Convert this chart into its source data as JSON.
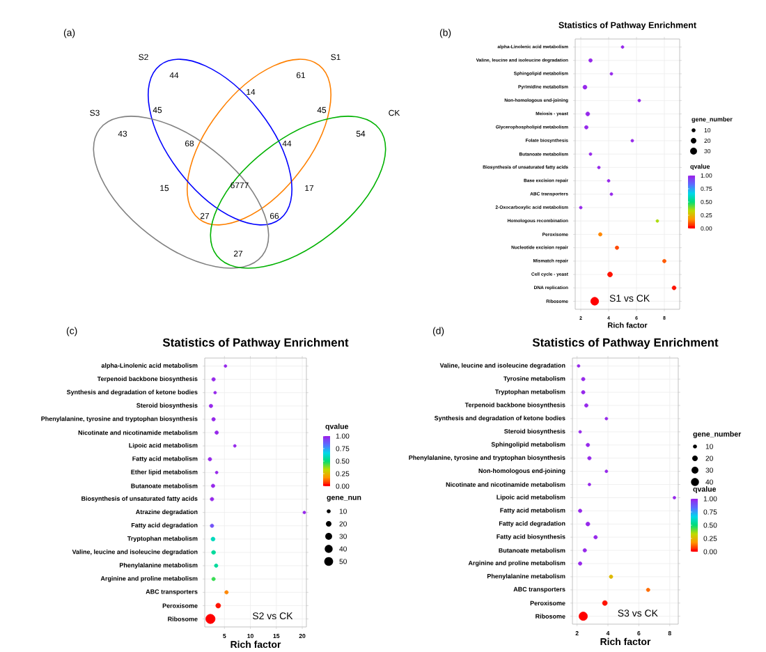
{
  "chart_data": [
    {
      "type": "other",
      "title": "(a)",
      "annotations": [
        "S1",
        "S2",
        "S3",
        "CK",
        "44",
        "61",
        "43",
        "54",
        "14",
        "45",
        "45",
        "68",
        "44",
        "15",
        "6777",
        "17",
        "27",
        "66",
        "27"
      ]
    },
    {
      "type": "bubble",
      "orientation": "horizontal",
      "title": "Statistics of Pathway Enrichment",
      "xlabel": "Rich factor",
      "categories": [
        "alpha-Linolenic acid metabolism",
        "Valine, leucine and isoleucine degradation",
        "Sphingolipid metabolism",
        "Pyrimidine metabolism",
        "Non-homologous end-joining",
        "Meiosis - yeast",
        "Glycerophospholipid metabolism",
        "Folate biosynthesis",
        "Butanoate metabolism",
        "Biosynthesis of unsaturated fatty acids",
        "Base excision repair",
        "ABC transporters",
        "2-Oxocarboxylic acid metabolism",
        "Homologous recombination",
        "Peroxisome",
        "Nucleotide excision repair",
        "Mismatch repair",
        "Cell cycle - yeast",
        "DNA replication",
        "Ribosome"
      ],
      "values": [
        5.0,
        2.7,
        4.2,
        2.3,
        6.2,
        2.5,
        2.4,
        5.7,
        2.7,
        3.3,
        4.0,
        4.2,
        2.0,
        7.5,
        3.4,
        4.6,
        8.0,
        4.1,
        8.7,
        3.0
      ],
      "sizes": [
        5,
        8,
        5,
        10,
        5,
        10,
        8,
        5,
        5,
        5,
        5,
        5,
        5,
        5,
        8,
        8,
        8,
        15,
        10,
        40
      ],
      "cvalues": [
        1,
        1,
        1,
        1,
        1,
        1,
        1,
        1,
        1,
        1,
        1,
        1,
        1,
        0.35,
        0.15,
        0.08,
        0.1,
        0.02,
        0.02,
        0
      ],
      "xlim": [
        1.6,
        9.1
      ],
      "xticks": [
        2,
        4,
        6,
        8
      ],
      "grid": true,
      "legend_title": "gene_number",
      "size_legend": [
        10,
        20,
        30
      ],
      "clabel": "qvalue",
      "clim": [
        0,
        1
      ],
      "cticks": [
        {
          "value": 0,
          "label": "0.00"
        },
        {
          "value": 0.25,
          "label": "0.25"
        },
        {
          "value": 0.5,
          "label": "0.50"
        },
        {
          "value": 0.75,
          "label": "0.75"
        },
        {
          "value": 1,
          "label": "1.00"
        }
      ],
      "annotations": [
        "(b)",
        "S1 vs CK"
      ]
    },
    {
      "type": "bubble",
      "orientation": "horizontal",
      "title": "Statistics of Pathway Enrichment",
      "xlabel": "Rich factor",
      "categories": [
        "alpha-Linolenic acid metabolism",
        "Terpenoid backbone biosynthesis",
        "Synthesis and degradation of ketone bodies",
        "Steroid biosynthesis",
        "Phenylalanine, tyrosine and tryptophan biosynthesis",
        "Nicotinate and nicotinamide metabolism",
        "Lipoic acid metabolism",
        "Fatty acid metabolism",
        "Ether lipid metabolism",
        "Butanoate metabolism",
        "Biosynthesis of unsaturated fatty acids",
        "Atrazine degradation",
        "Fatty acid degradation",
        "Tryptophan metabolism",
        "Valine, leucine and isoleucine degradation",
        "Phenylalanine metabolism",
        "Arginine and proline metabolism",
        "ABC transporters",
        "Peroxisome",
        "Ribosome"
      ],
      "values": [
        5.2,
        2.9,
        3.2,
        2.4,
        2.9,
        3.5,
        7.0,
        2.2,
        3.5,
        2.8,
        2.6,
        20.4,
        2.6,
        2.8,
        2.9,
        3.4,
        2.9,
        5.4,
        3.8,
        2.3
      ],
      "sizes": [
        5,
        8,
        5,
        8,
        8,
        8,
        5,
        8,
        5,
        8,
        8,
        5,
        8,
        10,
        10,
        8,
        8,
        8,
        15,
        55
      ],
      "cvalues": [
        1,
        1,
        1,
        1,
        1,
        1,
        1,
        1,
        1,
        1,
        1,
        1,
        0.9,
        0.6,
        0.55,
        0.55,
        0.45,
        0.15,
        0.02,
        0
      ],
      "xlim": [
        1.2,
        20.8
      ],
      "xticks": [
        5,
        10,
        15,
        20
      ],
      "grid": true,
      "legend_title": "gene_nun",
      "size_legend": [
        10,
        20,
        30,
        40,
        50
      ],
      "clabel": "qvalue",
      "clim": [
        0,
        1
      ],
      "cticks": [
        {
          "value": 0,
          "label": "0.00"
        },
        {
          "value": 0.25,
          "label": "0.25"
        },
        {
          "value": 0.5,
          "label": "0.50"
        },
        {
          "value": 0.75,
          "label": "0.75"
        },
        {
          "value": 1,
          "label": "1.00"
        }
      ],
      "annotations": [
        "(c)",
        "S2 vs CK"
      ]
    },
    {
      "type": "bubble",
      "orientation": "horizontal",
      "title": "Statistics of Pathway Enrichment",
      "xlabel": "Rich factor",
      "categories": [
        "Valine, leucine and isoleucine degradation",
        "Tyrosine metabolism",
        "Tryptophan metabolism",
        "Terpenoid backbone biosynthesis",
        "Synthesis and degradation of ketone bodies",
        "Steroid biosynthesis",
        "Sphingolipid metabolism",
        "Phenylalanine, tyrosine and tryptophan biosynthesis",
        "Non-homologous end-joining",
        "Nicotinate and nicotinamide metabolism",
        "Lipoic acid metabolism",
        "Fatty acid metabolism",
        "Fatty acid degradation",
        "Fatty acid biosynthesis",
        "Butanoate metabolism",
        "Arginine and proline metabolism",
        "Phenylalanine metabolism",
        "ABC transporters",
        "Peroxisome",
        "Ribosome"
      ],
      "values": [
        2.1,
        2.4,
        2.4,
        2.6,
        3.9,
        2.2,
        2.7,
        2.8,
        3.9,
        2.8,
        8.3,
        2.2,
        2.7,
        3.2,
        2.5,
        2.2,
        4.2,
        6.6,
        3.8,
        2.4
      ],
      "sizes": [
        5,
        8,
        8,
        8,
        5,
        5,
        8,
        8,
        5,
        5,
        5,
        8,
        10,
        8,
        8,
        8,
        8,
        8,
        15,
        45
      ],
      "cvalues": [
        1,
        1,
        1,
        1,
        1,
        1,
        1,
        1,
        1,
        1,
        1,
        1,
        1,
        1,
        1,
        1,
        0.25,
        0.12,
        0.02,
        0
      ],
      "xlim": [
        1.7,
        8.55
      ],
      "xticks": [
        2,
        4,
        6,
        8
      ],
      "grid": true,
      "legend_title": "gene_number",
      "size_legend": [
        10,
        20,
        30,
        40
      ],
      "clabel": "qvalue",
      "clim": [
        0,
        1
      ],
      "cticks": [
        {
          "value": 0,
          "label": "0.00"
        },
        {
          "value": 0.25,
          "label": "0.25"
        },
        {
          "value": 0.5,
          "label": "0.50"
        },
        {
          "value": 0.75,
          "label": "0.75"
        },
        {
          "value": 1,
          "label": "1.00"
        }
      ],
      "annotations": [
        "(d)",
        "S3 vs CK"
      ]
    }
  ]
}
